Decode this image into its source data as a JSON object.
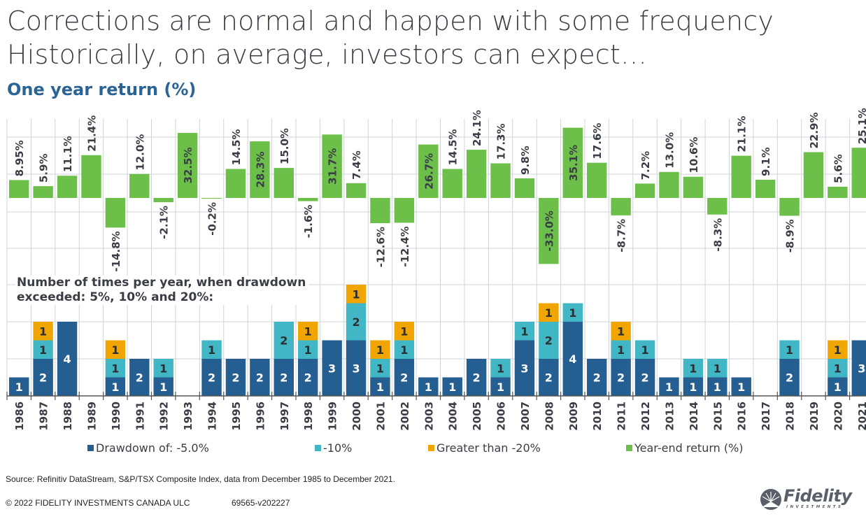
{
  "header": {
    "title_line1": "Corrections are normal and happen with some frequency",
    "title_line2": "Historically, on average, investors can expect…",
    "subtitle": "One year return (%)"
  },
  "drawdown_caption": {
    "line1": "Number of times per year, when drawdown",
    "line2": "exceeded: 5%, 10% and 20%:"
  },
  "colors": {
    "return_bar": "#6cc04a",
    "drawdown_5": "#255f91",
    "drawdown_10": "#41b6c4",
    "drawdown_20": "#f0a500",
    "grid": "#d0d3d8",
    "text_dark": "#3a3d45"
  },
  "legend": [
    {
      "label": "Drawdown of: -5.0%",
      "color_key": "drawdown_5"
    },
    {
      "label": "-10%",
      "color_key": "drawdown_10"
    },
    {
      "label": "Greater than -20%",
      "color_key": "drawdown_20"
    },
    {
      "label": "Year-end return (%)",
      "color_key": "return_bar"
    }
  ],
  "footer": {
    "source": "Source: Refinitiv DataStream, S&P/TSX Composite Index, data from December 1985 to December 2021.",
    "copyright": "© 2022 FIDELITY INVESTMENTS CANADA ULC",
    "doc_code": "69565-v202227",
    "logo_word": "Fidelity",
    "logo_sub": "INVESTMENTS"
  },
  "chart_data": [
    {
      "type": "bar",
      "title": "One year return (%)",
      "xlabel": "",
      "ylabel": "One year return (%)",
      "ylim": [
        -40,
        40
      ],
      "grid": true,
      "categories": [
        "1986",
        "1987",
        "1988",
        "1989",
        "1990",
        "1991",
        "1992",
        "1993",
        "1994",
        "1995",
        "1996",
        "1997",
        "1998",
        "1999",
        "2000",
        "2001",
        "2002",
        "2003",
        "2004",
        "2005",
        "2006",
        "2007",
        "2008",
        "2009",
        "2010",
        "2011",
        "2012",
        "2013",
        "2014",
        "2015",
        "2016",
        "2017",
        "2018",
        "2019",
        "2020",
        "2021"
      ],
      "series": [
        {
          "name": "Year-end return (%)",
          "values": [
            8.95,
            5.9,
            11.1,
            21.4,
            -14.8,
            12.0,
            -2.1,
            32.5,
            -0.2,
            14.5,
            28.3,
            15.0,
            -1.6,
            31.7,
            7.4,
            -12.6,
            -12.4,
            26.7,
            14.5,
            24.1,
            17.3,
            9.8,
            -33.0,
            35.1,
            17.6,
            -8.7,
            7.2,
            13.0,
            10.6,
            -8.3,
            21.1,
            9.1,
            -8.9,
            22.9,
            5.6,
            25.1
          ],
          "labels": [
            "8.95%",
            "5.9%",
            "11.1%",
            "21.4%",
            "-14.8%",
            "12.0%",
            "-2.1%",
            "32.5%",
            "-0.2%",
            "14.5%",
            "28.3%",
            "15.0%",
            "-1.6%",
            "31.7%",
            "7.4%",
            "-12.6%",
            "-12.4%",
            "26.7%",
            "14.5%",
            "24.1%",
            "17.3%",
            "9.8%",
            "-33.0%",
            "35.1%",
            "17.6%",
            "-8.7%",
            "7.2%",
            "13.0%",
            "10.6%",
            "-8.3%",
            "21.1%",
            "9.1%",
            "-8.9%",
            "22.9%",
            "5.6%",
            "25.1%"
          ]
        }
      ]
    },
    {
      "type": "bar",
      "stacked": true,
      "title": "Number of times per year, when drawdown exceeded: 5%, 10% and 20%:",
      "xlabel": "",
      "ylabel": "",
      "ylim": [
        0,
        6
      ],
      "grid": true,
      "legend_position": "bottom",
      "categories": [
        "1986",
        "1987",
        "1988",
        "1989",
        "1990",
        "1991",
        "1992",
        "1993",
        "1994",
        "1995",
        "1996",
        "1997",
        "1998",
        "1999",
        "2000",
        "2001",
        "2002",
        "2003",
        "2004",
        "2005",
        "2006",
        "2007",
        "2008",
        "2009",
        "2010",
        "2011",
        "2012",
        "2013",
        "2014",
        "2015",
        "2016",
        "2017",
        "2018",
        "2019",
        "2020",
        "2021"
      ],
      "series": [
        {
          "name": "Drawdown of: -5.0%",
          "values": [
            1,
            2,
            4,
            0,
            1,
            2,
            1,
            0,
            2,
            2,
            2,
            2,
            2,
            3,
            3,
            1,
            2,
            1,
            1,
            2,
            1,
            3,
            2,
            4,
            2,
            2,
            2,
            1,
            1,
            1,
            1,
            0,
            2,
            0,
            1,
            3
          ]
        },
        {
          "name": "-10%",
          "values": [
            0,
            1,
            0,
            0,
            1,
            0,
            1,
            0,
            1,
            0,
            0,
            2,
            1,
            0,
            2,
            1,
            1,
            0,
            0,
            0,
            1,
            1,
            2,
            1,
            0,
            1,
            1,
            0,
            1,
            1,
            0,
            0,
            1,
            0,
            1,
            0
          ]
        },
        {
          "name": "Greater than -20%",
          "values": [
            0,
            1,
            0,
            0,
            1,
            0,
            0,
            0,
            0,
            0,
            0,
            0,
            1,
            0,
            1,
            1,
            1,
            0,
            0,
            0,
            0,
            0,
            1,
            0,
            0,
            1,
            0,
            0,
            0,
            0,
            0,
            0,
            0,
            0,
            1,
            0
          ]
        }
      ]
    }
  ]
}
